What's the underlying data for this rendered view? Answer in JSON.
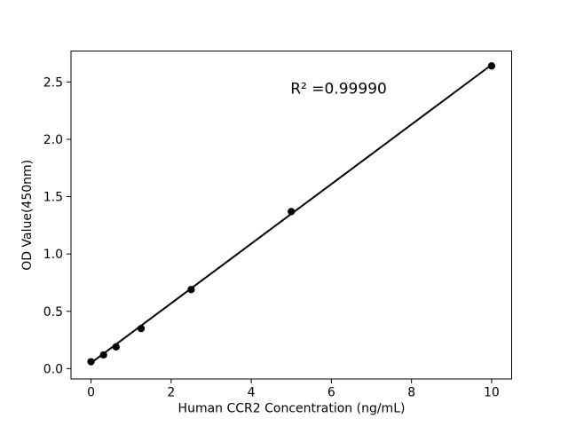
{
  "chart_data": {
    "type": "scatter",
    "title": "",
    "xlabel": "Human CCR2 Concentration (ng/mL)",
    "ylabel": "OD Value(450nm)",
    "annotation": "R² =0.99990",
    "annotation_xy": [
      5.0,
      2.4
    ],
    "x": [
      0,
      0.313,
      0.625,
      1.25,
      2.5,
      5,
      10
    ],
    "y": [
      0.06,
      0.12,
      0.19,
      0.35,
      0.69,
      1.37,
      2.64
    ],
    "fit_line": {
      "x": [
        0,
        10
      ],
      "y": [
        0.05,
        2.65
      ]
    },
    "xlim": [
      -0.5,
      10.5
    ],
    "ylim": [
      -0.09,
      2.77
    ],
    "x_ticks": [
      0,
      2,
      4,
      6,
      8,
      10
    ],
    "x_tick_labels": [
      "0",
      "2",
      "4",
      "6",
      "8",
      "10"
    ],
    "y_ticks": [
      0.0,
      0.5,
      1.0,
      1.5,
      2.0,
      2.5
    ],
    "y_tick_labels": [
      "0.0",
      "0.5",
      "1.0",
      "1.5",
      "2.0",
      "2.5"
    ],
    "grid": false,
    "legend": null,
    "marker_color": "#000000",
    "line_color": "#000000",
    "axis_color": "#000000",
    "background": "#ffffff"
  }
}
